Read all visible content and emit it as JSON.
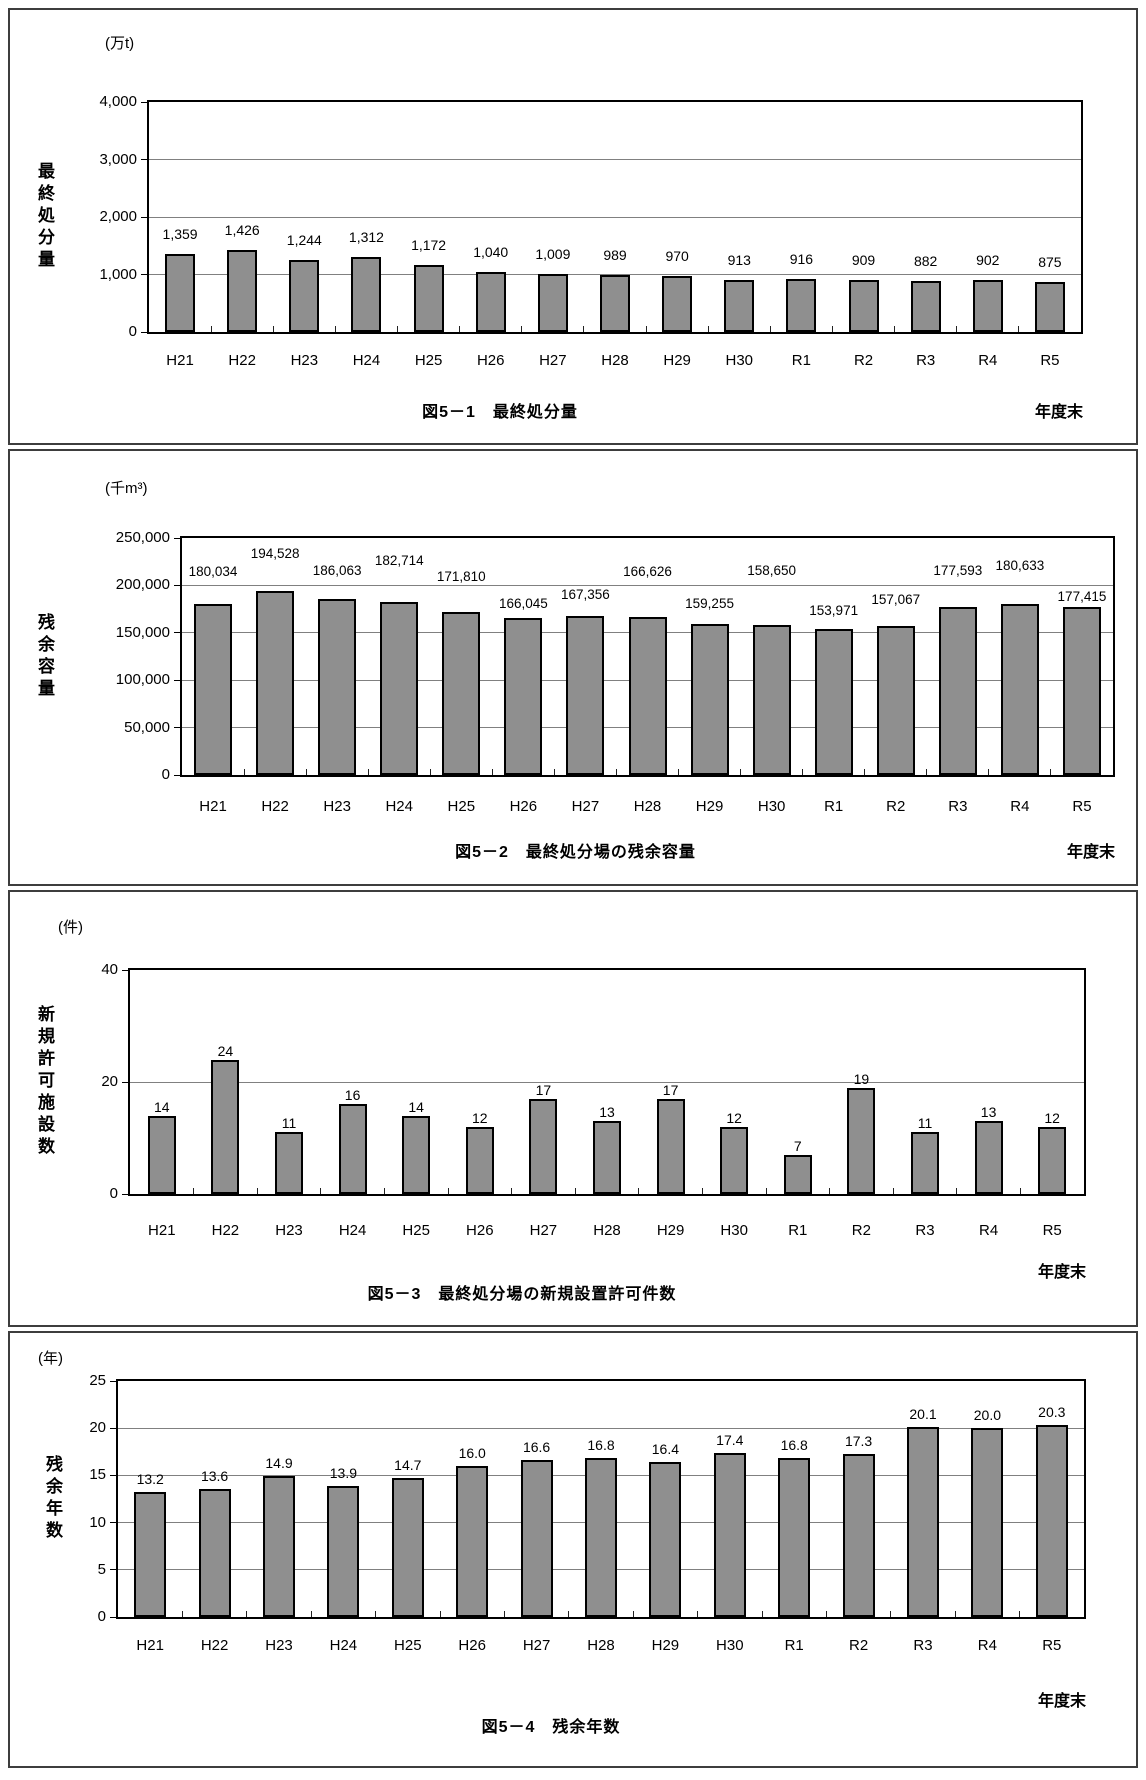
{
  "colors": {
    "background": "#ffffff",
    "panel_border": "#3d3d3d",
    "frame": "#000000",
    "gridline": "#808080",
    "bar_fill": "#8f8f8f",
    "bar_outline": "#000000",
    "text": "#000000"
  },
  "categories": [
    "H21",
    "H22",
    "H23",
    "H24",
    "H25",
    "H26",
    "H27",
    "H28",
    "H29",
    "H30",
    "R1",
    "R2",
    "R3",
    "R4",
    "R5"
  ],
  "chart_data": [
    {
      "type": "bar",
      "caption": "図5－1　最終処分量",
      "unit": "(万t)",
      "y_axis_title": "最終処分量",
      "x_axis_end_label": "年度末",
      "categories": [
        "H21",
        "H22",
        "H23",
        "H24",
        "H25",
        "H26",
        "H27",
        "H28",
        "H29",
        "H30",
        "R1",
        "R2",
        "R3",
        "R4",
        "R5"
      ],
      "values": [
        1359,
        1426,
        1244,
        1312,
        1172,
        1040,
        1009,
        989,
        970,
        913,
        916,
        909,
        882,
        902,
        875
      ],
      "value_labels": [
        "1,359",
        "1,426",
        "1,244",
        "1,312",
        "1,172",
        "1,040",
        "1,009",
        "989",
        "970",
        "913",
        "916",
        "909",
        "882",
        "902",
        "875"
      ],
      "ylim": [
        0,
        4000
      ],
      "yticks": [
        0,
        1000,
        2000,
        3000,
        4000
      ],
      "ytick_labels": [
        "0",
        "1,000",
        "2,000",
        "3,000",
        "4,000"
      ],
      "grid": true,
      "legend": "none"
    },
    {
      "type": "bar",
      "caption": "図5－2　最終処分場の残余容量",
      "unit": "(千m³)",
      "y_axis_title": "残余容量",
      "x_axis_end_label": "年度末",
      "categories": [
        "H21",
        "H22",
        "H23",
        "H24",
        "H25",
        "H26",
        "H27",
        "H28",
        "H29",
        "H30",
        "R1",
        "R2",
        "R3",
        "R4",
        "R5"
      ],
      "values": [
        180034,
        194528,
        186063,
        182714,
        171810,
        166045,
        167356,
        166626,
        159255,
        158650,
        153971,
        157067,
        177593,
        180633,
        177415
      ],
      "value_labels": [
        "180,034",
        "194,528",
        "186,063",
        "182,714",
        "171,810",
        "166,045",
        "167,356",
        "166,626",
        "159,255",
        "158,650",
        "153,971",
        "157,067",
        "177,593",
        "180,633",
        "177,415"
      ],
      "ylim": [
        0,
        250000
      ],
      "yticks": [
        0,
        50000,
        100000,
        150000,
        200000,
        250000
      ],
      "ytick_labels": [
        "0",
        "50,000",
        "100,000",
        "150,000",
        "200,000",
        "250,000"
      ],
      "grid": true,
      "legend": "none",
      "label_dy": [
        0,
        -5,
        4,
        -9,
        -3,
        18,
        11,
        -13,
        12,
        -22,
        14,
        6,
        -4,
        -6,
        22
      ]
    },
    {
      "type": "bar",
      "caption": "図5－3　最終処分場の新規設置許可件数",
      "unit": "(件)",
      "y_axis_title": "新規許可施設数",
      "x_axis_end_label": "年度末",
      "categories": [
        "H21",
        "H22",
        "H23",
        "H24",
        "H25",
        "H26",
        "H27",
        "H28",
        "H29",
        "H30",
        "R1",
        "R2",
        "R3",
        "R4",
        "R5"
      ],
      "values": [
        14,
        24,
        11,
        16,
        14,
        12,
        17,
        13,
        17,
        12,
        7,
        19,
        11,
        13,
        12
      ],
      "value_labels": [
        "14",
        "24",
        "11",
        "16",
        "14",
        "12",
        "17",
        "13",
        "17",
        "12",
        "7",
        "19",
        "11",
        "13",
        "12"
      ],
      "ylim": [
        0,
        40
      ],
      "yticks": [
        0,
        20,
        40
      ],
      "ytick_labels": [
        "0",
        "20",
        "40"
      ],
      "grid": true,
      "legend": "none"
    },
    {
      "type": "bar",
      "caption": "図5－4　残余年数",
      "unit": "(年)",
      "y_axis_title": "残余年数",
      "x_axis_end_label": "年度末",
      "categories": [
        "H21",
        "H22",
        "H23",
        "H24",
        "H25",
        "H26",
        "H27",
        "H28",
        "H29",
        "H30",
        "R1",
        "R2",
        "R3",
        "R4",
        "R5"
      ],
      "values": [
        13.2,
        13.6,
        14.9,
        13.9,
        14.7,
        16.0,
        16.6,
        16.8,
        16.4,
        17.4,
        16.8,
        17.3,
        20.1,
        20.0,
        20.3
      ],
      "value_labels": [
        "13.2",
        "13.6",
        "14.9",
        "13.9",
        "14.7",
        "16.0",
        "16.6",
        "16.8",
        "16.4",
        "17.4",
        "16.8",
        "17.3",
        "20.1",
        "20.0",
        "20.3"
      ],
      "ylim": [
        0,
        25
      ],
      "yticks": [
        0,
        5,
        10,
        15,
        20,
        25
      ],
      "ytick_labels": [
        "0",
        "5",
        "10",
        "15",
        "20",
        "25"
      ],
      "grid": true,
      "legend": "none"
    }
  ]
}
